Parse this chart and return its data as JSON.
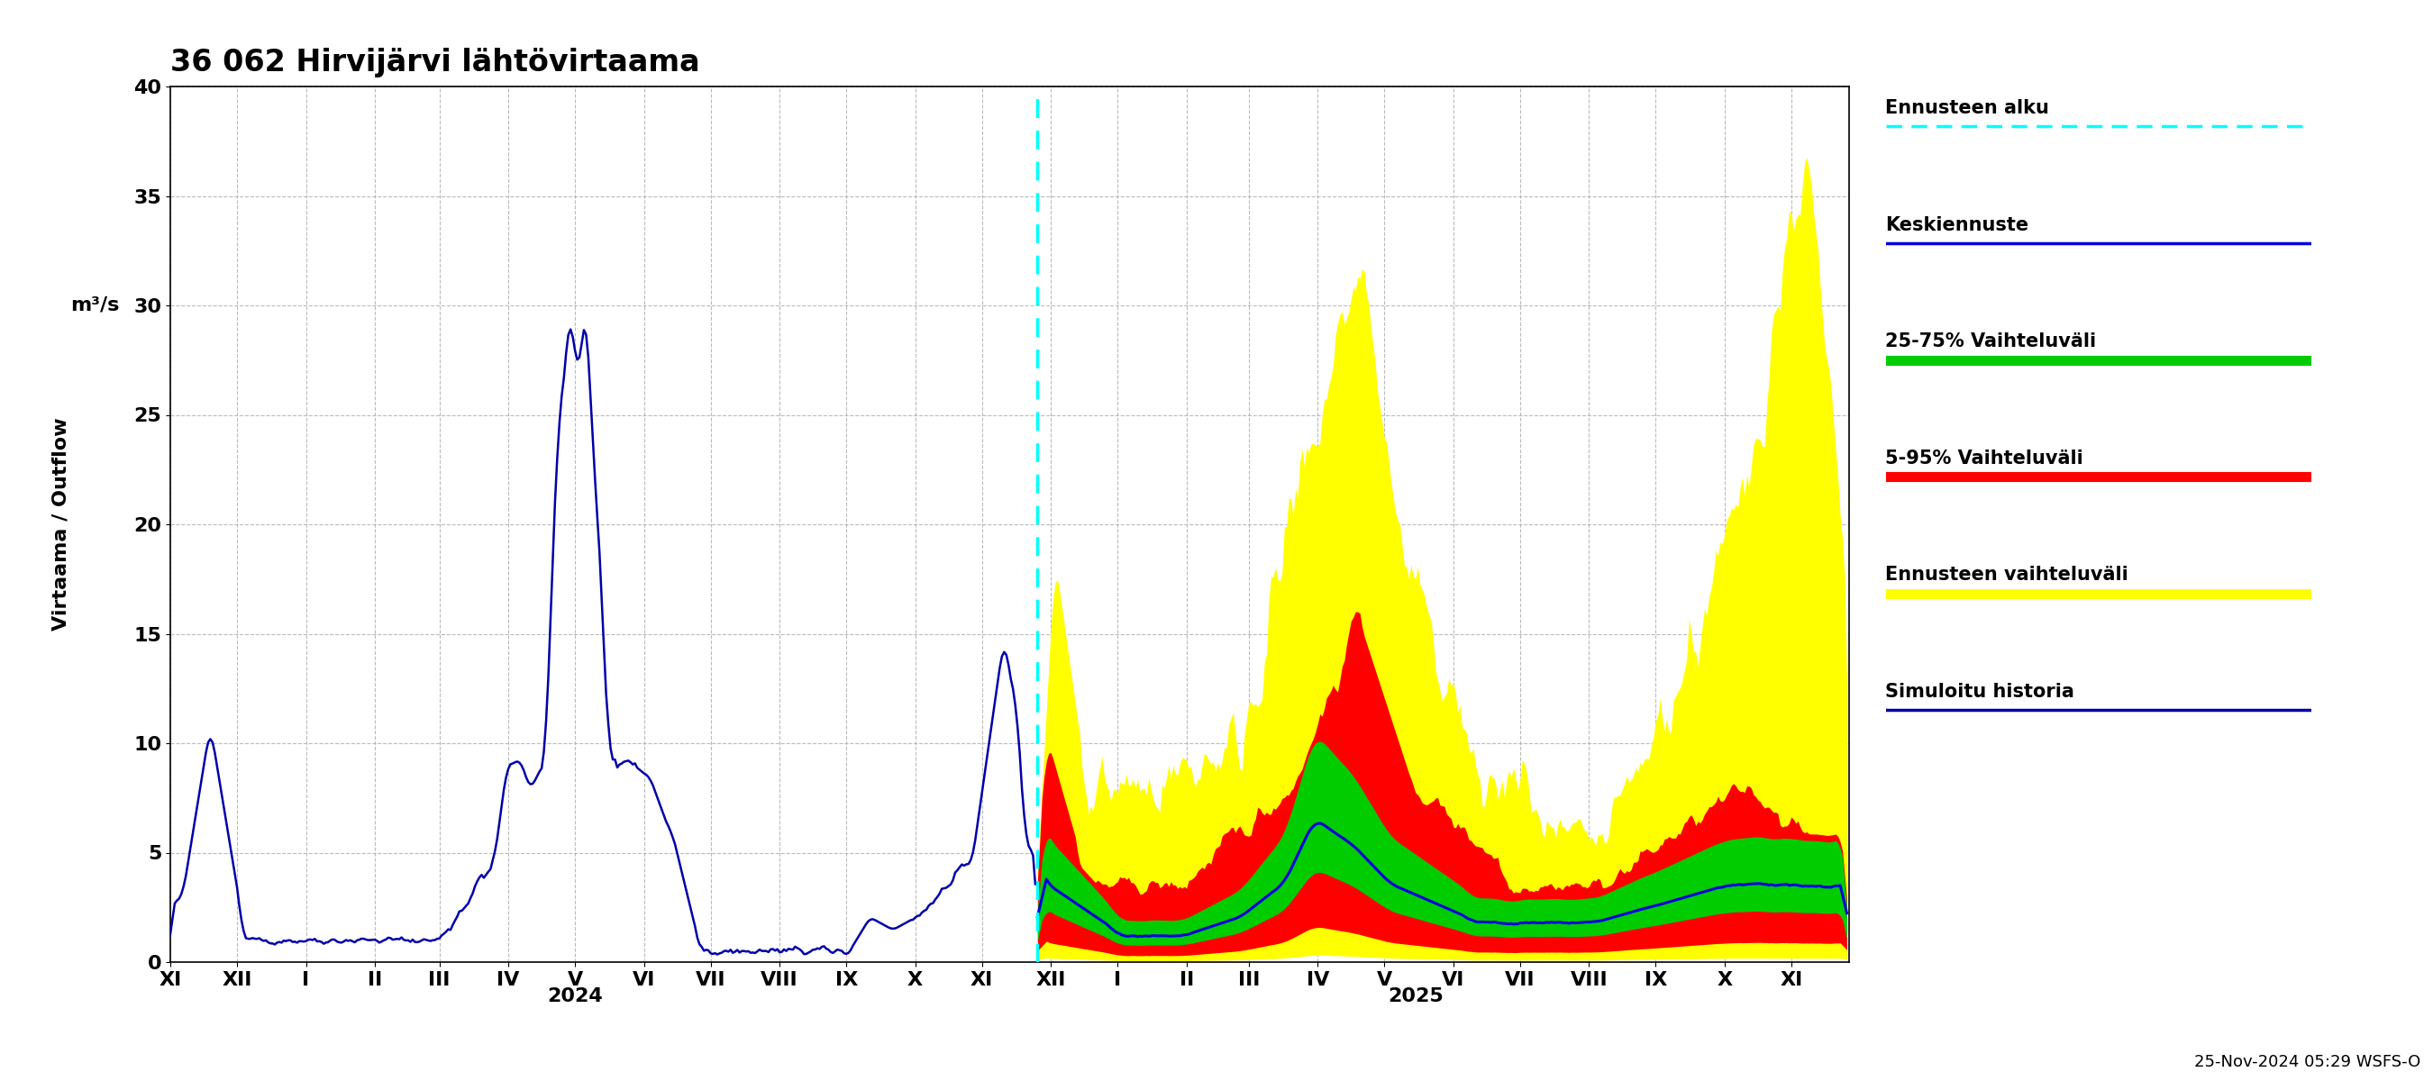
{
  "title": "36 062 Hirvijärvi lähtövirtaama",
  "ylabel1": "Virtaama / Outflow",
  "ylabel2": "m³/s",
  "ylim": [
    0,
    40
  ],
  "yticks": [
    0,
    5,
    10,
    15,
    20,
    25,
    30,
    35,
    40
  ],
  "forecast_start_label": "Ennusteen alku",
  "keskiennuste_label": "Keskiennuste",
  "range2575_label": "25-75% Vaihteluväli",
  "range595_label": "5-95% Vaihteluväli",
  "ennuste_range_label": "Ennusteen vaihteluväli",
  "simuloitu_label": "Simuloitu historia",
  "timestamp_label": "25-Nov-2024 05:29 WSFS-O",
  "color_forecast_line": "#0000dd",
  "color_center": "#0000cc",
  "color_25_75": "#00cc00",
  "color_5_95": "#ff0000",
  "color_ennuste_range": "#ffff00",
  "color_simuloitu": "#0000aa",
  "color_forecast_vline": "#00ffff",
  "bg_color": "#ffffff",
  "grid_color": "#aaaaaa"
}
